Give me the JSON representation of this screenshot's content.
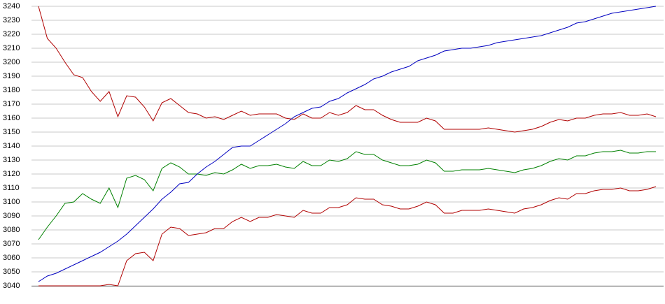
{
  "chart_data": {
    "type": "line",
    "categories": [
      null,
      null,
      null,
      null,
      null,
      null,
      null,
      null,
      null,
      null,
      null,
      null,
      null,
      null,
      null,
      null,
      null,
      null,
      null,
      null,
      null,
      null,
      null,
      null,
      null,
      null,
      null,
      null,
      null,
      null,
      null,
      null,
      null,
      null,
      null,
      null,
      null,
      null,
      null,
      null,
      null,
      null,
      null,
      null,
      null,
      null,
      null,
      null,
      null,
      null,
      null,
      null,
      null,
      null,
      null,
      null,
      null,
      null,
      null,
      null,
      null,
      null,
      null,
      null,
      null,
      null,
      null,
      null,
      null,
      null,
      null
    ],
    "series": [
      {
        "color": "#b00000",
        "values": [
          3240,
          3217,
          3210,
          3200,
          3191,
          3189,
          3179,
          3172,
          3179,
          3161,
          3176,
          3175,
          3168,
          3158,
          3171,
          3174,
          3169,
          3164,
          3163,
          3160,
          3161,
          3159,
          3162,
          3165,
          3162,
          3163,
          3163,
          3163,
          3160,
          3159,
          3163,
          3160,
          3160,
          3164,
          3162,
          3164,
          3169,
          3166,
          3166,
          3162,
          3159,
          3157,
          3157,
          3157,
          3160,
          3158,
          3152,
          3152,
          3152,
          3152,
          3152,
          3153,
          3152,
          3151,
          3150,
          3151,
          3152,
          3154,
          3157,
          3159,
          3158,
          3160,
          3160,
          3162,
          3163,
          3163,
          3164,
          3162,
          3162,
          3163,
          3161
        ]
      },
      {
        "color": "#008000",
        "values": [
          3073,
          3082,
          3090,
          3099,
          3100,
          3106,
          3102,
          3099,
          3110,
          3096,
          3117,
          3119,
          3116,
          3108,
          3124,
          3128,
          3125,
          3120,
          3120,
          3119,
          3121,
          3120,
          3123,
          3127,
          3124,
          3126,
          3126,
          3127,
          3125,
          3124,
          3129,
          3126,
          3126,
          3130,
          3129,
          3131,
          3136,
          3134,
          3134,
          3130,
          3128,
          3126,
          3126,
          3127,
          3130,
          3128,
          3122,
          3122,
          3123,
          3123,
          3123,
          3124,
          3123,
          3122,
          3121,
          3123,
          3124,
          3126,
          3129,
          3131,
          3130,
          3133,
          3133,
          3135,
          3136,
          3136,
          3137,
          3135,
          3135,
          3136,
          3136
        ]
      },
      {
        "color": "#b00000",
        "values": [
          3040,
          3040,
          3040,
          3040,
          3040,
          3040,
          3040,
          3040,
          3041,
          3040,
          3058,
          3063,
          3064,
          3058,
          3077,
          3082,
          3081,
          3076,
          3077,
          3078,
          3081,
          3081,
          3086,
          3089,
          3086,
          3089,
          3089,
          3091,
          3090,
          3089,
          3094,
          3092,
          3092,
          3096,
          3096,
          3098,
          3103,
          3102,
          3102,
          3098,
          3097,
          3095,
          3095,
          3097,
          3100,
          3098,
          3092,
          3092,
          3094,
          3094,
          3094,
          3095,
          3094,
          3093,
          3092,
          3095,
          3096,
          3098,
          3101,
          3103,
          3102,
          3106,
          3106,
          3108,
          3109,
          3109,
          3110,
          3108,
          3108,
          3109,
          3111
        ]
      },
      {
        "color": "#0000c0",
        "values": [
          3043,
          3047,
          3049,
          3052,
          3055,
          3058,
          3061,
          3064,
          3068,
          3072,
          3077,
          3083,
          3089,
          3095,
          3102,
          3107,
          3113,
          3114,
          3120,
          3125,
          3129,
          3134,
          3139,
          3140,
          3140,
          3144,
          3148,
          3152,
          3156,
          3161,
          3164,
          3167,
          3168,
          3172,
          3174,
          3178,
          3181,
          3184,
          3188,
          3190,
          3193,
          3195,
          3197,
          3201,
          3203,
          3205,
          3208,
          3209,
          3210,
          3210,
          3211,
          3212,
          3214,
          3215,
          3216,
          3217,
          3218,
          3219,
          3221,
          3223,
          3225,
          3228,
          3229,
          3231,
          3233,
          3235,
          3236,
          3237,
          3238,
          3239,
          3240
        ]
      }
    ],
    "ylim": [
      3040,
      3240
    ],
    "yticks": [
      3040,
      3050,
      3060,
      3070,
      3080,
      3090,
      3100,
      3110,
      3120,
      3130,
      3140,
      3150,
      3160,
      3170,
      3180,
      3190,
      3200,
      3210,
      3220,
      3230,
      3240
    ],
    "grid": true
  }
}
